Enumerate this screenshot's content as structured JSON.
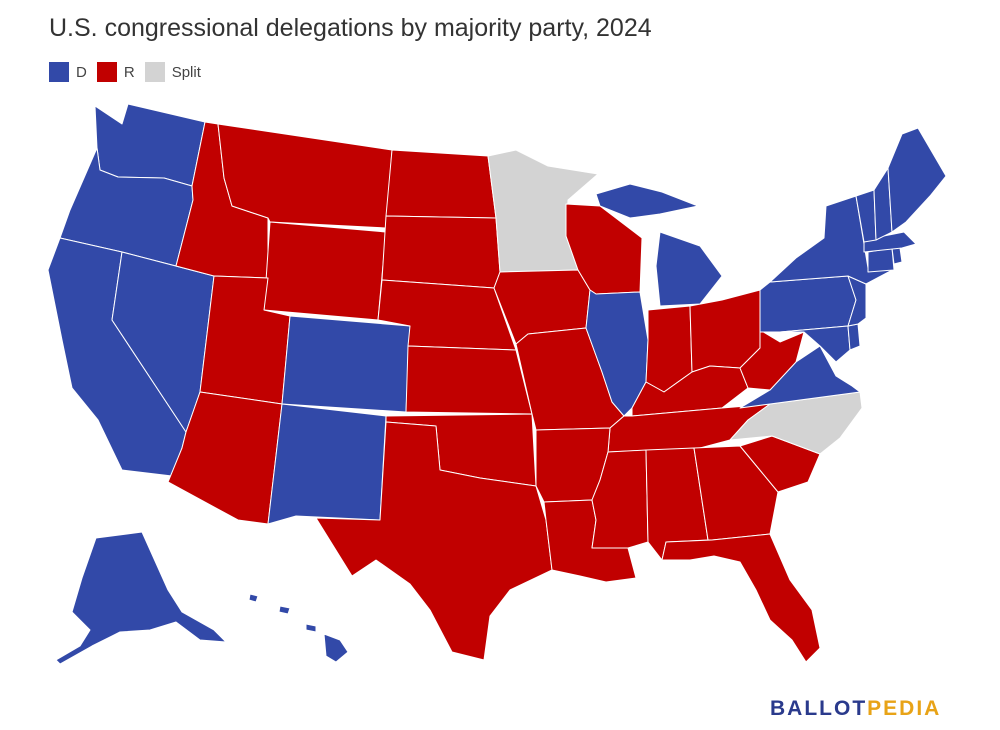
{
  "header": {
    "title": "U.S. congressional delegations by majority party, 2024"
  },
  "legend": [
    {
      "key": "D",
      "label": "D",
      "color": "#3249a8"
    },
    {
      "key": "R",
      "label": "R",
      "color": "#c10000"
    },
    {
      "key": "Split",
      "label": "Split",
      "color": "#d3d3d3"
    }
  ],
  "colors": {
    "D": "#3249a8",
    "R": "#c10000",
    "Split": "#d3d3d3",
    "border": "#ffffff"
  },
  "map_data": {
    "AL": "R",
    "AK": "D",
    "AZ": "R",
    "AR": "R",
    "CA": "D",
    "CO": "D",
    "CT": "D",
    "DE": "D",
    "FL": "R",
    "GA": "R",
    "HI": "D",
    "ID": "R",
    "IL": "D",
    "IN": "R",
    "IA": "R",
    "KS": "R",
    "KY": "R",
    "LA": "R",
    "ME": "D",
    "MD": "D",
    "MA": "D",
    "MI": "D",
    "MN": "Split",
    "MS": "R",
    "MO": "R",
    "MT": "R",
    "NE": "R",
    "NV": "D",
    "NH": "D",
    "NJ": "D",
    "NM": "D",
    "NY": "D",
    "NC": "Split",
    "ND": "R",
    "OH": "R",
    "OK": "R",
    "OR": "D",
    "PA": "D",
    "RI": "D",
    "SC": "R",
    "SD": "R",
    "TN": "R",
    "TX": "R",
    "UT": "R",
    "VT": "D",
    "VA": "D",
    "WA": "D",
    "WV": "R",
    "WI": "R",
    "WY": "R"
  },
  "branding": {
    "logo_part1": "BALLOT",
    "logo_part2": "PEDIA",
    "color1": "#2a3a8c",
    "color2": "#e8a317"
  }
}
